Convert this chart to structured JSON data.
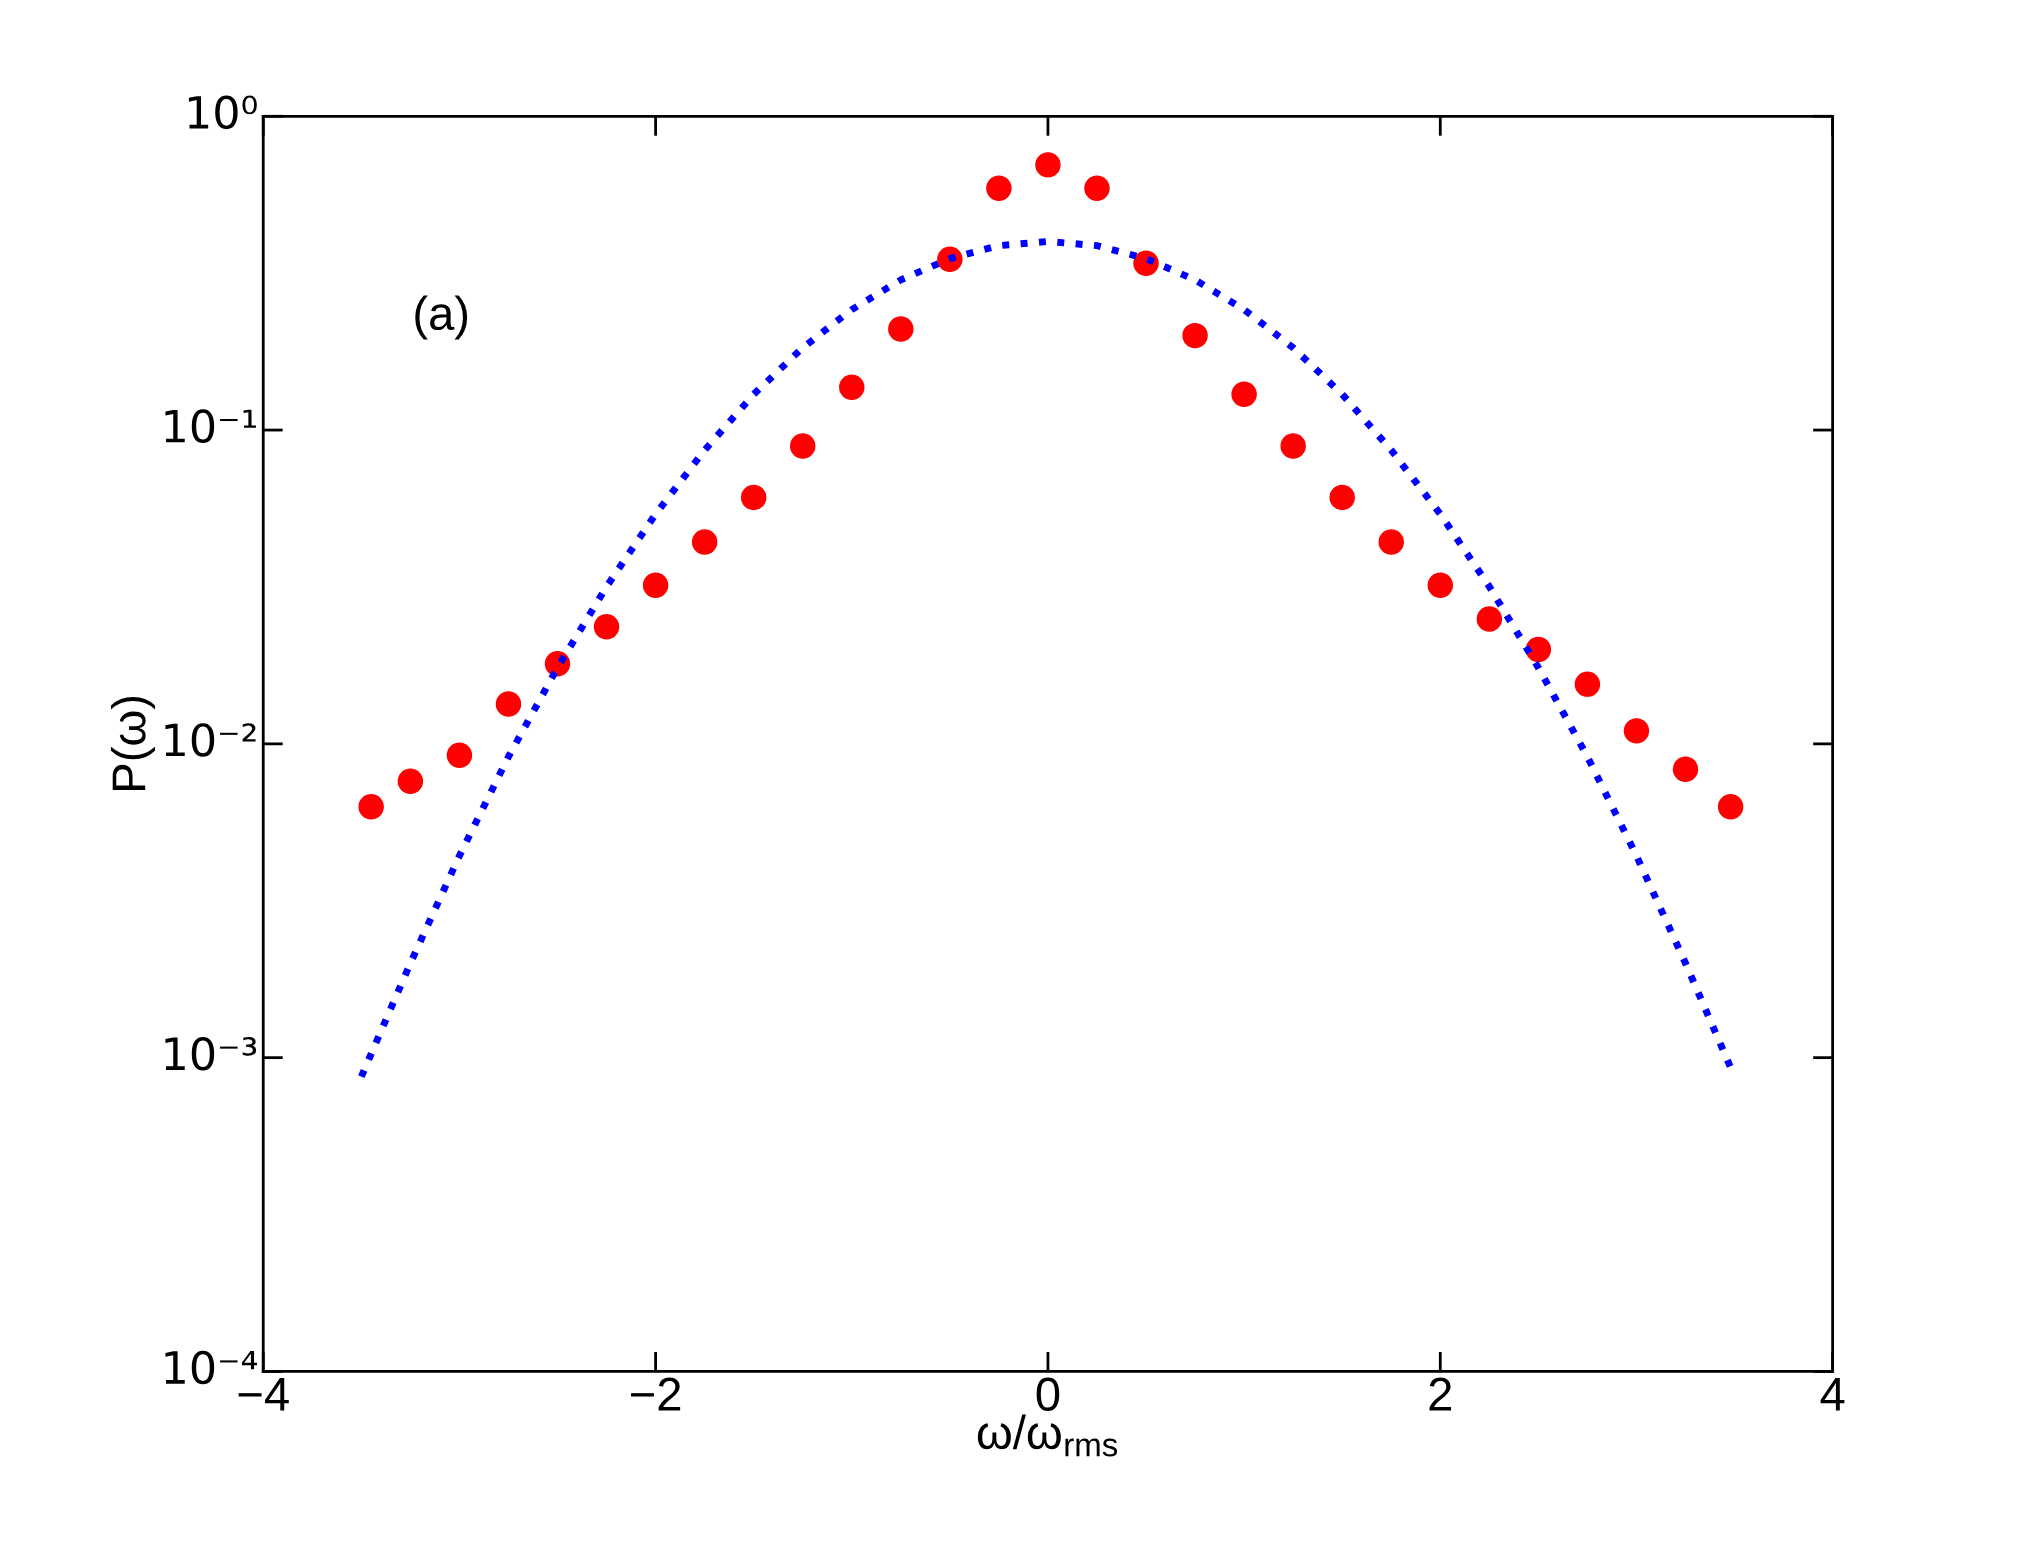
{
  "chart_data": {
    "type": "scatter",
    "xlabel": "ω/ω$_{rms}$",
    "ylabel": "P(ω)",
    "annotations": [
      "(a)"
    ],
    "log": "y",
    "grid": false,
    "marker": "circle",
    "xlim": [
      -4,
      4
    ],
    "ylim": [
      0.0001,
      1
    ],
    "xticks": [
      {
        "value": -4,
        "label": "−4"
      },
      {
        "value": -2,
        "label": "−2"
      },
      0,
      2,
      4
    ],
    "yticks": [
      {
        "value": 0.0001,
        "label": "10⁻⁴"
      },
      {
        "value": 0.001,
        "label": "10⁻³"
      },
      {
        "value": 0.01,
        "label": "10⁻²"
      },
      {
        "value": 0.1,
        "label": "10⁻¹"
      },
      {
        "value": 1,
        "label": "10⁰"
      }
    ],
    "series": [
      {
        "color": "#ff0000",
        "x": [
          -3.45,
          -3.25,
          -3.0,
          -2.75,
          -2.5,
          -2.25,
          -2.0,
          -1.75,
          -1.5,
          -1.25,
          -1.0,
          -0.75,
          -0.5,
          -0.25,
          0,
          0.25,
          0.5,
          0.75,
          1.0,
          1.25,
          1.5,
          1.75,
          2.0,
          2.25,
          2.5,
          2.75,
          3.0,
          3.25,
          3.48
        ],
        "values": [
          0.0063,
          0.0076,
          0.0092,
          0.0134,
          0.018,
          0.0236,
          0.032,
          0.044,
          0.061,
          0.089,
          0.137,
          0.21,
          0.35,
          0.59,
          0.7,
          0.59,
          0.34,
          0.2,
          0.13,
          0.089,
          0.061,
          0.044,
          0.032,
          0.025,
          0.02,
          0.0155,
          0.011,
          0.0083,
          0.0063
        ]
      },
      {
        "type": "line",
        "color": "#0000ff",
        "marker": "none",
        "line_style": "dotted",
        "x": [
          -3.5,
          -3.25,
          -3.0,
          -2.75,
          -2.5,
          -2.25,
          -2.0,
          -1.75,
          -1.5,
          -1.25,
          -1.0,
          -0.75,
          -0.5,
          -0.25,
          0,
          0.25,
          0.5,
          0.75,
          1.0,
          1.25,
          1.5,
          1.75,
          2.0,
          2.25,
          2.5,
          2.75,
          3.0,
          3.25,
          3.5
        ],
        "values": [
          0.00087,
          0.002,
          0.0044,
          0.0091,
          0.0175,
          0.0317,
          0.054,
          0.0863,
          0.13,
          0.183,
          0.242,
          0.301,
          0.352,
          0.387,
          0.399,
          0.387,
          0.352,
          0.301,
          0.242,
          0.183,
          0.13,
          0.0863,
          0.054,
          0.0317,
          0.0175,
          0.0091,
          0.0044,
          0.002,
          0.00087
        ]
      }
    ]
  }
}
